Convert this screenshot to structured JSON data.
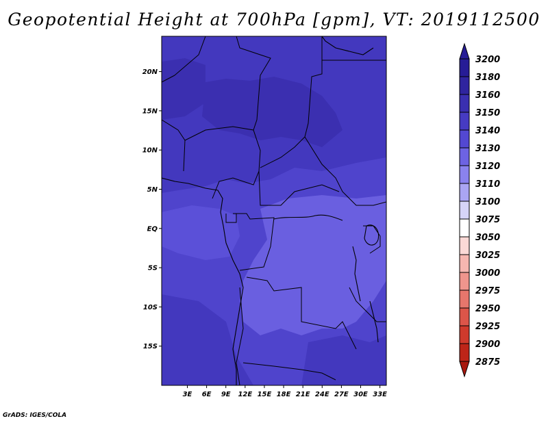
{
  "title": "Geopotential Height at 700hPa [gpm], VT: 2019112500",
  "credit": "GrADS: IGES/COLA",
  "map": {
    "lon_range": [
      -1,
      34
    ],
    "lat_range": [
      -20,
      24.5
    ],
    "lat_ticks": [
      {
        "value": 20,
        "label": "20N"
      },
      {
        "value": 15,
        "label": "15N"
      },
      {
        "value": 10,
        "label": "10N"
      },
      {
        "value": 5,
        "label": "5N"
      },
      {
        "value": 0,
        "label": "EQ"
      },
      {
        "value": -5,
        "label": "5S"
      },
      {
        "value": -10,
        "label": "10S"
      },
      {
        "value": -15,
        "label": "15S"
      }
    ],
    "lon_ticks": [
      {
        "value": 3,
        "label": "3E"
      },
      {
        "value": 6,
        "label": "6E"
      },
      {
        "value": 9,
        "label": "9E"
      },
      {
        "value": 12,
        "label": "12E"
      },
      {
        "value": 15,
        "label": "15E"
      },
      {
        "value": 18,
        "label": "18E"
      },
      {
        "value": 21,
        "label": "21E"
      },
      {
        "value": 24,
        "label": "24E"
      },
      {
        "value": 27,
        "label": "27E"
      },
      {
        "value": 30,
        "label": "30E"
      },
      {
        "value": 33,
        "label": "33E"
      }
    ],
    "colors": {
      "3150": "#4f44cc",
      "3140": "#5b50d8",
      "3130": "#6a5fe0",
      "3160": "#4338be",
      "3180": "#3b2fb0"
    }
  },
  "colorbar": {
    "levels": [
      {
        "label": "3200",
        "color": "#261c96"
      },
      {
        "label": "3180",
        "color": "#2f249f"
      },
      {
        "label": "3160",
        "color": "#3a2fb0"
      },
      {
        "label": "3150",
        "color": "#463bc2"
      },
      {
        "label": "3140",
        "color": "#5348d2"
      },
      {
        "label": "3130",
        "color": "#6d63e3"
      },
      {
        "label": "3120",
        "color": "#8a82ee"
      },
      {
        "label": "3110",
        "color": "#aaa5f3"
      },
      {
        "label": "3100",
        "color": "#d6d4f8"
      },
      {
        "label": "3075",
        "color": "#ffffff"
      },
      {
        "label": "3050",
        "color": "#fbd9d6"
      },
      {
        "label": "3025",
        "color": "#f6b6b0"
      },
      {
        "label": "3000",
        "color": "#ef958d"
      },
      {
        "label": "2975",
        "color": "#e6766c"
      },
      {
        "label": "2950",
        "color": "#dc5549"
      },
      {
        "label": "2925",
        "color": "#cf3a2c"
      },
      {
        "label": "2900",
        "color": "#bd2518"
      },
      {
        "label": "2875",
        "color": "#a8180e"
      }
    ]
  }
}
